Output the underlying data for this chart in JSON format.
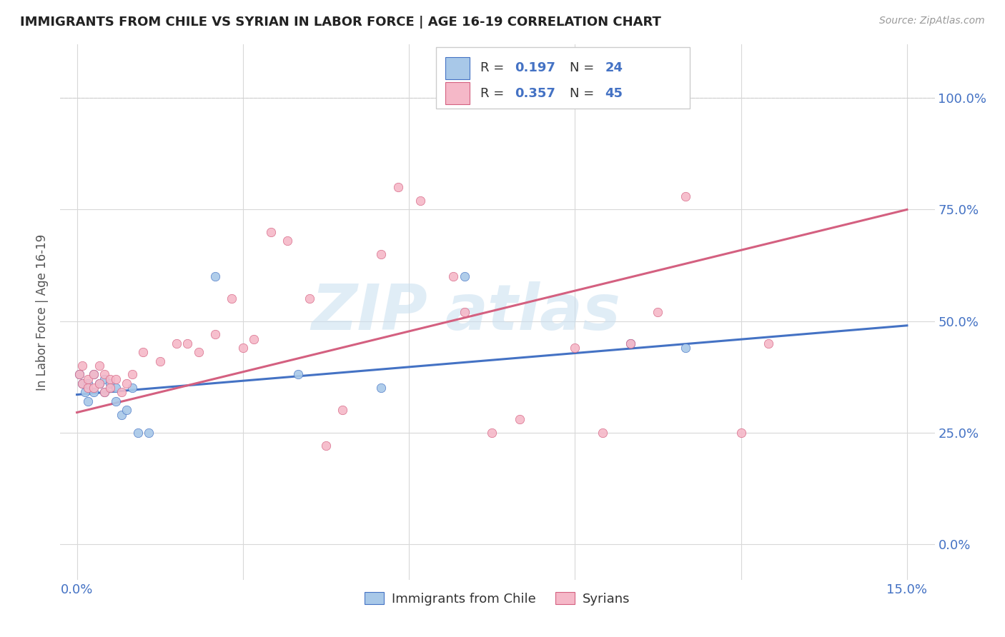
{
  "title": "IMMIGRANTS FROM CHILE VS SYRIAN IN LABOR FORCE | AGE 16-19 CORRELATION CHART",
  "source": "Source: ZipAtlas.com",
  "ylabel": "In Labor Force | Age 16-19",
  "chile_color": "#a8c8e8",
  "syrian_color": "#f5b8c8",
  "chile_line_color": "#4472c4",
  "syrian_line_color": "#d46080",
  "chile_R": 0.197,
  "chile_N": 24,
  "syrian_R": 0.357,
  "syrian_N": 45,
  "watermark_zip": "ZIP",
  "watermark_atlas": "atlas",
  "chile_x": [
    0.0005,
    0.001,
    0.0015,
    0.002,
    0.002,
    0.003,
    0.003,
    0.004,
    0.005,
    0.005,
    0.006,
    0.007,
    0.007,
    0.008,
    0.009,
    0.01,
    0.011,
    0.013,
    0.025,
    0.04,
    0.055,
    0.07,
    0.1,
    0.11
  ],
  "chile_y": [
    0.38,
    0.36,
    0.34,
    0.36,
    0.32,
    0.34,
    0.38,
    0.36,
    0.37,
    0.34,
    0.36,
    0.35,
    0.32,
    0.29,
    0.3,
    0.35,
    0.25,
    0.25,
    0.6,
    0.38,
    0.35,
    0.6,
    0.45,
    0.44
  ],
  "syrian_x": [
    0.0005,
    0.001,
    0.001,
    0.002,
    0.002,
    0.003,
    0.003,
    0.004,
    0.004,
    0.005,
    0.005,
    0.006,
    0.006,
    0.007,
    0.008,
    0.009,
    0.01,
    0.012,
    0.015,
    0.018,
    0.02,
    0.022,
    0.025,
    0.028,
    0.03,
    0.032,
    0.035,
    0.038,
    0.042,
    0.045,
    0.048,
    0.055,
    0.058,
    0.062,
    0.068,
    0.07,
    0.075,
    0.08,
    0.09,
    0.095,
    0.1,
    0.105,
    0.11,
    0.12,
    0.125
  ],
  "syrian_y": [
    0.38,
    0.36,
    0.4,
    0.37,
    0.35,
    0.35,
    0.38,
    0.36,
    0.4,
    0.38,
    0.34,
    0.37,
    0.35,
    0.37,
    0.34,
    0.36,
    0.38,
    0.43,
    0.41,
    0.45,
    0.45,
    0.43,
    0.47,
    0.55,
    0.44,
    0.46,
    0.7,
    0.68,
    0.55,
    0.22,
    0.3,
    0.65,
    0.8,
    0.77,
    0.6,
    0.52,
    0.25,
    0.28,
    0.44,
    0.25,
    0.45,
    0.52,
    0.78,
    0.25,
    0.45
  ],
  "xlim": [
    -0.003,
    0.155
  ],
  "ylim": [
    -0.08,
    1.12
  ],
  "ytick_vals": [
    0.0,
    0.25,
    0.5,
    0.75,
    1.0
  ],
  "ytick_labels": [
    "0.0%",
    "25.0%",
    "50.0%",
    "75.0%",
    "100.0%"
  ],
  "xtick_vals": [
    0.0,
    0.03,
    0.06,
    0.09,
    0.12,
    0.15
  ],
  "xtick_show": [
    "0.0%",
    "",
    "",
    "",
    "",
    "15.0%"
  ],
  "chile_line_y0": 0.335,
  "chile_line_y1": 0.49,
  "syrian_line_y0": 0.295,
  "syrian_line_y1": 0.75
}
